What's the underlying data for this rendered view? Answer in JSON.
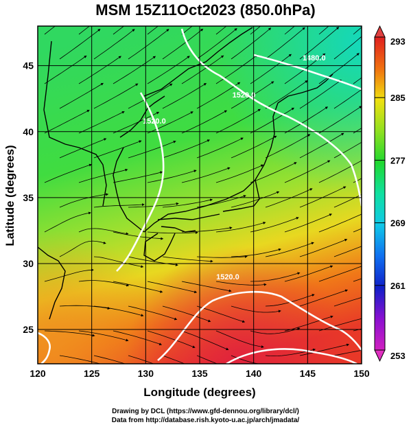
{
  "title": "MSM 15Z11Oct2023 (850.0hPa)",
  "map": {
    "xlabel": "Longitude (degrees)",
    "ylabel": "Latitude  (degrees)",
    "lon_range": [
      120,
      150
    ],
    "lat_range": [
      22.4,
      48
    ],
    "lon_ticks": [
      "120",
      "125",
      "130",
      "135",
      "140",
      "145",
      "150"
    ],
    "lat_ticks": [
      "25",
      "30",
      "35",
      "40",
      "45"
    ],
    "grid": true,
    "field": "temperature (K) shaded, streamlines, white geopotential height contours",
    "contour_labels": [
      {
        "text": "1480.0",
        "lon": 145.6,
        "lat": 45.4
      },
      {
        "text": "1520.0",
        "lon": 139.1,
        "lat": 42.6
      },
      {
        "text": "1520.0",
        "lon": 130.8,
        "lat": 40.6
      },
      {
        "text": "1520.0",
        "lon": 137.6,
        "lat": 28.8
      }
    ]
  },
  "colorbar": {
    "ticks": [
      "293",
      "285",
      "277",
      "269",
      "261",
      "253"
    ],
    "min": 253,
    "max": 293,
    "colors": [
      "#d020c0",
      "#8a10d0",
      "#1020c8",
      "#1070f0",
      "#10c8e8",
      "#10e0a0",
      "#20d830",
      "#90e020",
      "#f0e010",
      "#f0a010",
      "#f06010",
      "#e02020"
    ]
  },
  "credits": {
    "line1": "Drawing by DCL (https://www.gfd-dennou.org/library/dcl/)",
    "line2": "Data from http://database.rish.kyoto-u.ac.jp/arch/jmadata/"
  }
}
